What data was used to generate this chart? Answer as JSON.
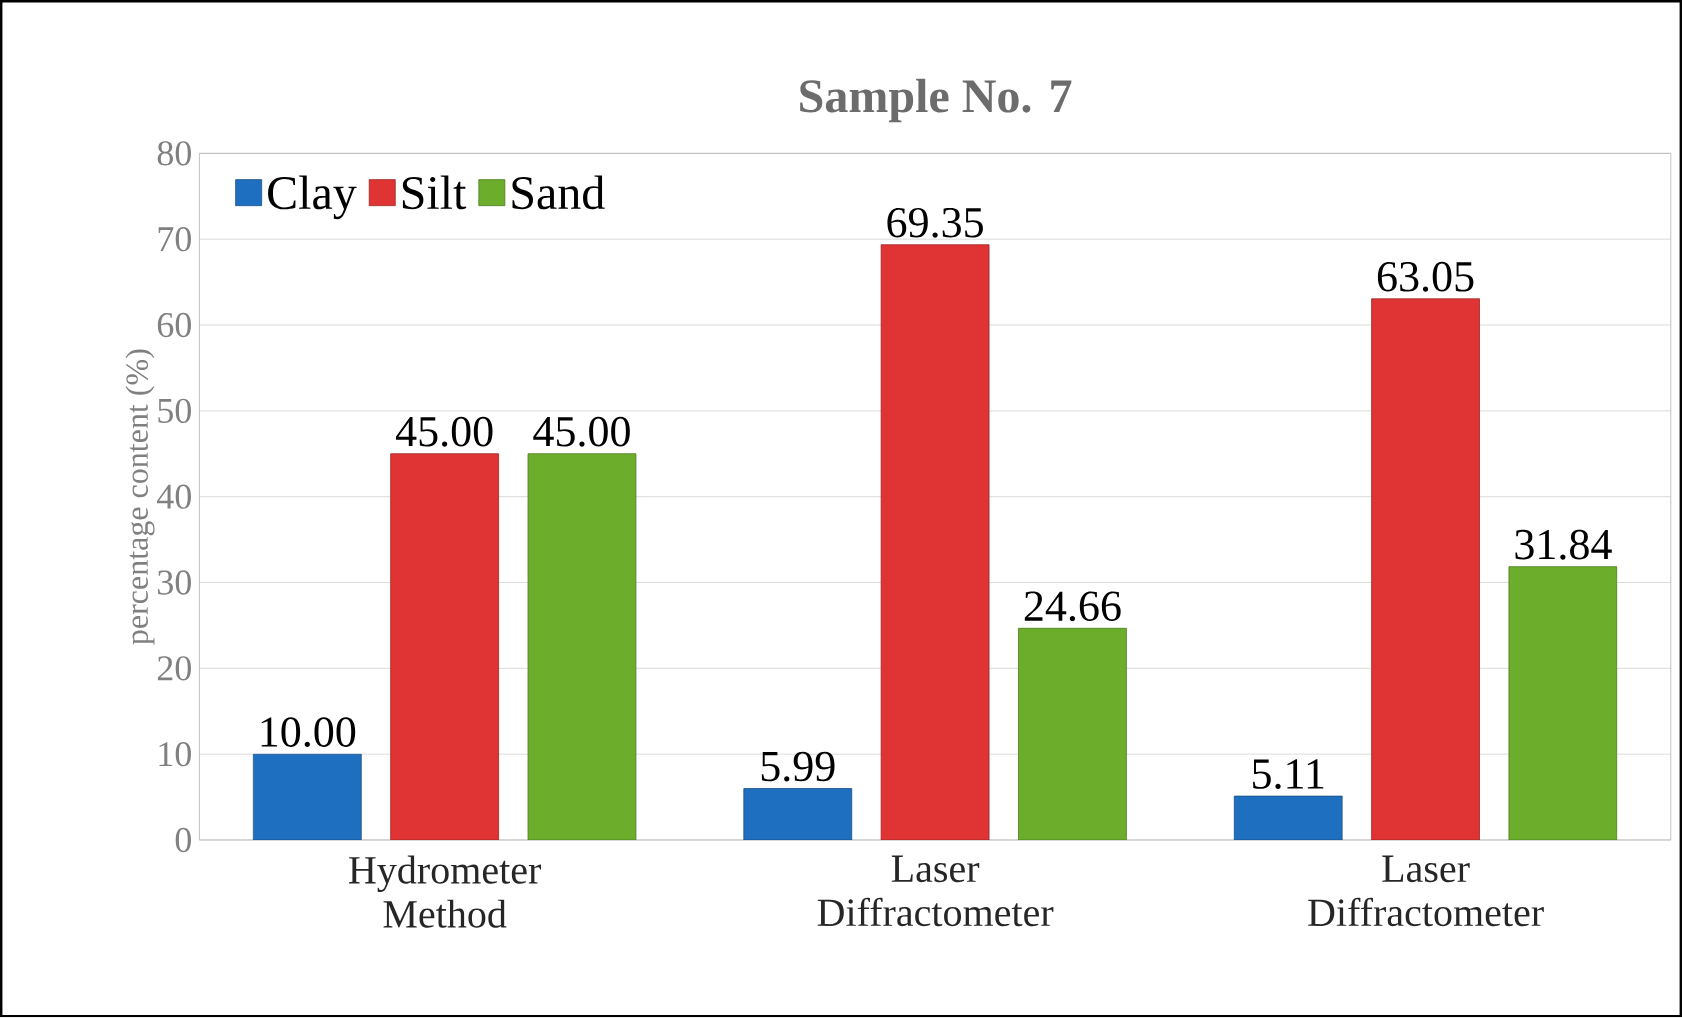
{
  "chart_data": {
    "type": "bar",
    "title": "Sample No. 7",
    "ylabel": "percentage content (%)",
    "categories": [
      "Hydrometer Method",
      "Laser Diffractometer",
      "Laser Diffractometer"
    ],
    "series": [
      {
        "name": "Clay",
        "color": "#1f6fc0",
        "values": [
          10.0,
          5.99,
          5.11
        ],
        "value_labels": [
          "10.00",
          "5.99",
          "5.11"
        ]
      },
      {
        "name": "Silt",
        "color": "#e03434",
        "values": [
          45.0,
          69.35,
          63.05
        ],
        "value_labels": [
          "45.00",
          "69.35",
          "63.05"
        ]
      },
      {
        "name": "Sand",
        "color": "#6cae2c",
        "values": [
          45.0,
          24.66,
          31.84
        ],
        "value_labels": [
          "45.00",
          "24.66",
          "31.84"
        ]
      }
    ],
    "ylim": [
      0,
      80
    ],
    "yticks": [
      0,
      10,
      20,
      30,
      40,
      50,
      60,
      70,
      80
    ],
    "grid": "y",
    "legend": "top left"
  }
}
